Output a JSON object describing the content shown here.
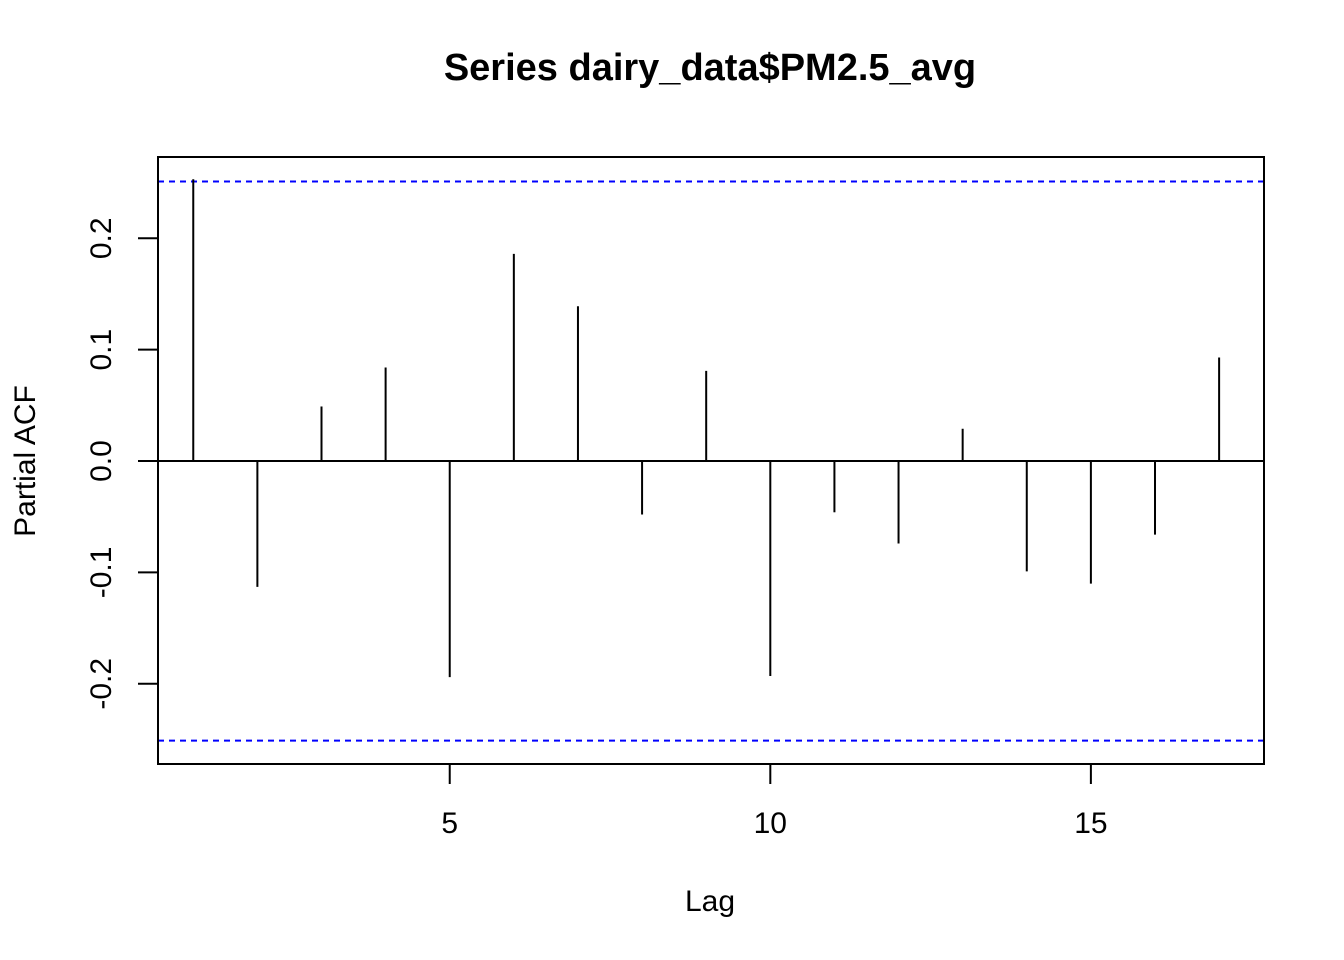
{
  "chart_data": {
    "type": "bar",
    "title": "Series  dairy_data$PM2.5_avg",
    "xlabel": "Lag",
    "ylabel": "Partial ACF",
    "xlim": [
      0.45,
      17.7
    ],
    "ylim": [
      -0.272,
      0.273
    ],
    "x_ticks": [
      5,
      10,
      15
    ],
    "x_tick_labels": [
      "5",
      "10",
      "15"
    ],
    "y_ticks": [
      -0.2,
      -0.1,
      0.0,
      0.1,
      0.2
    ],
    "y_tick_labels": [
      "-0.2",
      "-0.1",
      "0.0",
      "0.1",
      "0.2"
    ],
    "confidence_bound": 0.251,
    "colors": {
      "bars": "#000000",
      "bounds": "#0000ff",
      "frame": "#000000"
    },
    "series": [
      {
        "x": [
          1,
          2,
          3,
          4,
          5,
          6,
          7,
          8,
          9,
          10,
          11,
          12,
          13,
          14,
          15,
          16,
          17
        ],
        "values": [
          0.253,
          -0.113,
          0.049,
          0.084,
          -0.194,
          0.186,
          0.139,
          -0.048,
          0.081,
          -0.193,
          -0.046,
          -0.074,
          0.029,
          -0.099,
          -0.11,
          -0.066,
          0.093
        ]
      }
    ]
  }
}
